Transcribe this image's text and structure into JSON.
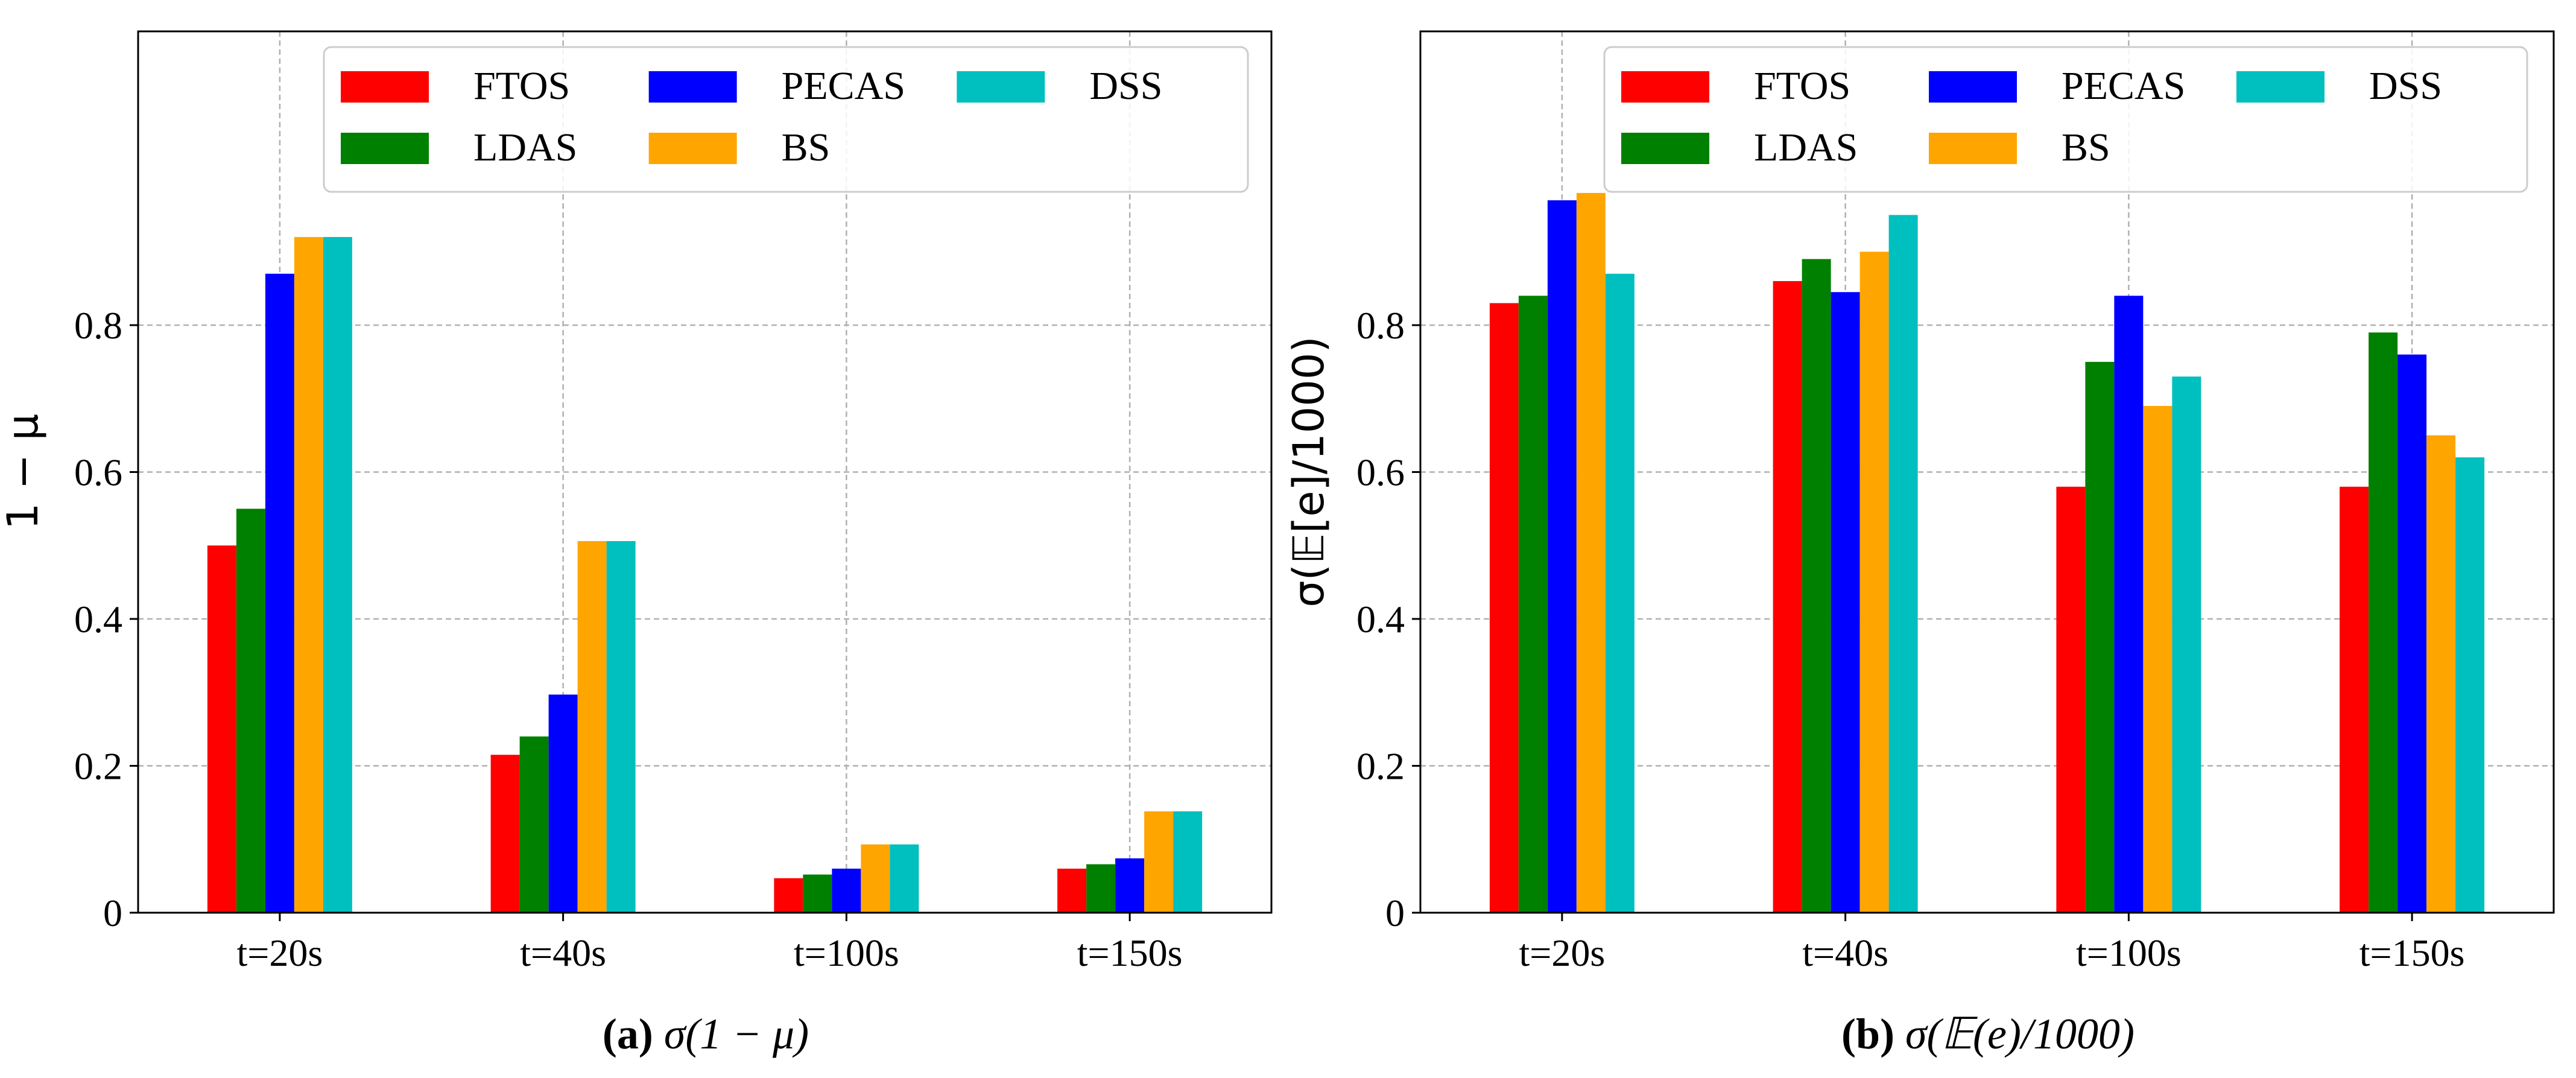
{
  "chart_data": [
    {
      "type": "bar",
      "title": "",
      "xlabel": "",
      "ylabel": "1 − μ",
      "caption": {
        "letter": "(a)",
        "text": "σ(1 − μ)"
      },
      "categories": [
        "t=20s",
        "t=40s",
        "t=100s",
        "t=150s"
      ],
      "ylim": [
        0,
        1.2
      ],
      "yticks": [
        0,
        0.2,
        0.4,
        0.6,
        0.8
      ],
      "ytick_labels": [
        "0",
        "0.2",
        "0.4",
        "0.6",
        "0.8"
      ],
      "grid": true,
      "legend_position": "top-right",
      "series": [
        {
          "name": "FTOS",
          "color": "#ff0000",
          "values": [
            0.5,
            0.215,
            0.047,
            0.06
          ]
        },
        {
          "name": "LDAS",
          "color": "#008000",
          "values": [
            0.55,
            0.24,
            0.052,
            0.066
          ]
        },
        {
          "name": "PECAS",
          "color": "#0000ff",
          "values": [
            0.87,
            0.297,
            0.06,
            0.074
          ]
        },
        {
          "name": "BS",
          "color": "#ffa500",
          "values": [
            0.92,
            0.506,
            0.093,
            0.138
          ]
        },
        {
          "name": "DSS",
          "color": "#00bfbf",
          "values": [
            0.92,
            0.506,
            0.093,
            0.138
          ]
        }
      ]
    },
    {
      "type": "bar",
      "title": "",
      "xlabel": "",
      "ylabel": "σ(𝔼[e]/1000)",
      "caption": {
        "letter": "(b)",
        "text": "σ(𝔼(e)/1000)"
      },
      "categories": [
        "t=20s",
        "t=40s",
        "t=100s",
        "t=150s"
      ],
      "ylim": [
        0,
        1.2
      ],
      "yticks": [
        0,
        0.2,
        0.4,
        0.6,
        0.8
      ],
      "ytick_labels": [
        "0",
        "0.2",
        "0.4",
        "0.6",
        "0.8"
      ],
      "grid": true,
      "legend_position": "top-right",
      "series": [
        {
          "name": "FTOS",
          "color": "#ff0000",
          "values": [
            0.83,
            0.86,
            0.58,
            0.58
          ]
        },
        {
          "name": "LDAS",
          "color": "#008000",
          "values": [
            0.84,
            0.89,
            0.75,
            0.79
          ]
        },
        {
          "name": "PECAS",
          "color": "#0000ff",
          "values": [
            0.97,
            0.845,
            0.84,
            0.76
          ]
        },
        {
          "name": "BS",
          "color": "#ffa500",
          "values": [
            0.98,
            0.9,
            0.69,
            0.65
          ]
        },
        {
          "name": "DSS",
          "color": "#00bfbf",
          "values": [
            0.87,
            0.95,
            0.73,
            0.62
          ]
        }
      ]
    }
  ]
}
